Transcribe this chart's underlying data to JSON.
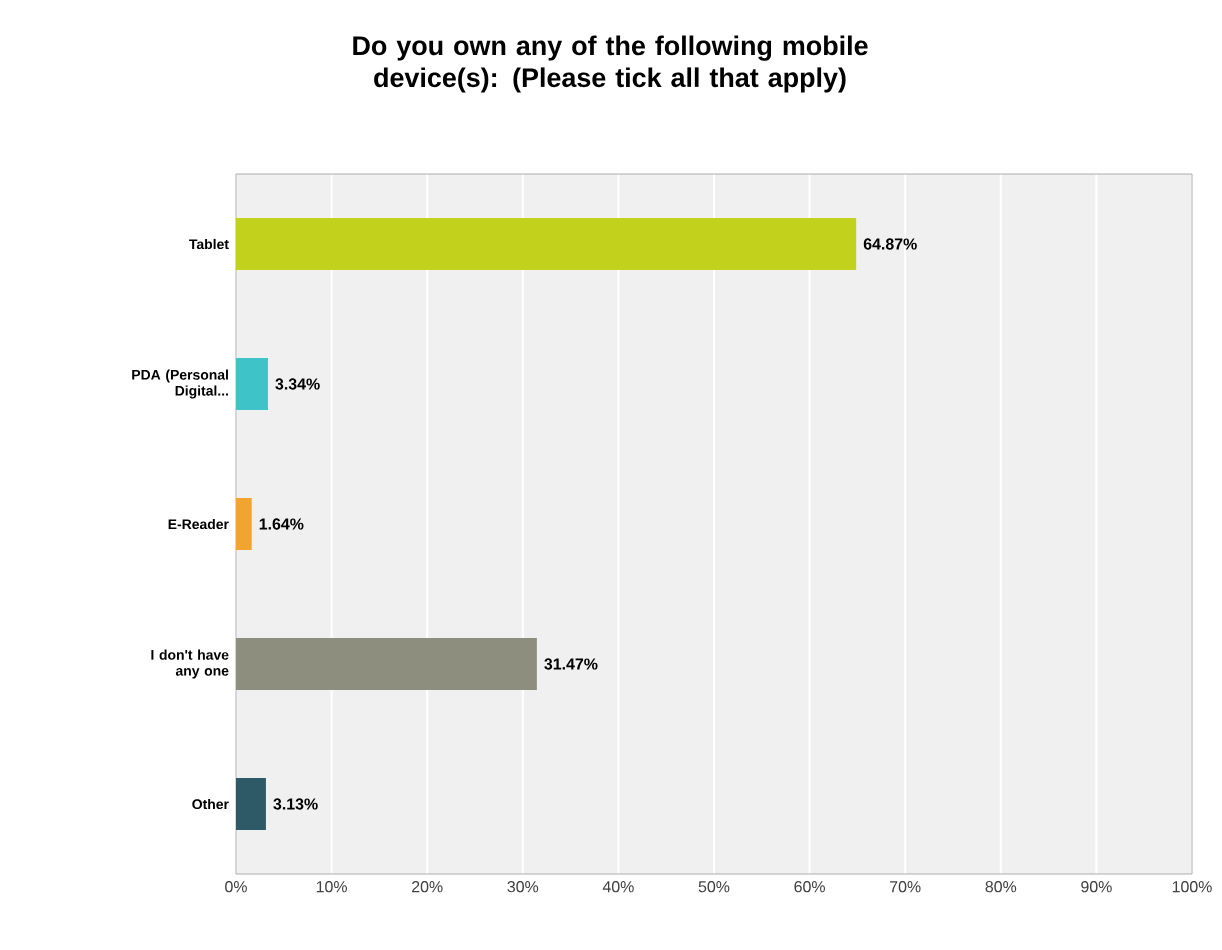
{
  "chart_data": {
    "type": "bar",
    "orientation": "horizontal",
    "title": "Do you own any of the following mobile device(s): (Please tick all that apply)",
    "categories": [
      "Tablet",
      "PDA (Personal Digital...",
      "E-Reader",
      "I don't have any one",
      "Other"
    ],
    "values": [
      64.87,
      3.34,
      1.64,
      31.47,
      3.13
    ],
    "colors": [
      "#c2d11c",
      "#3ec3c8",
      "#f2a431",
      "#8d8e7d",
      "#2e5966"
    ],
    "value_labels": [
      "64.87%",
      "3.34%",
      "1.64%",
      "31.47%",
      "3.13%"
    ],
    "xlim": [
      0,
      100
    ],
    "xticks": [
      {
        "value": 0,
        "label": "0%"
      },
      {
        "value": 10,
        "label": "10%"
      },
      {
        "value": 20,
        "label": "20%"
      },
      {
        "value": 30,
        "label": "30%"
      },
      {
        "value": 40,
        "label": "40%"
      },
      {
        "value": 50,
        "label": "50%"
      },
      {
        "value": 60,
        "label": "60%"
      },
      {
        "value": 70,
        "label": "70%"
      },
      {
        "value": 80,
        "label": "80%"
      },
      {
        "value": 90,
        "label": "90%"
      },
      {
        "value": 100,
        "label": "100%"
      }
    ],
    "grid": "x"
  }
}
